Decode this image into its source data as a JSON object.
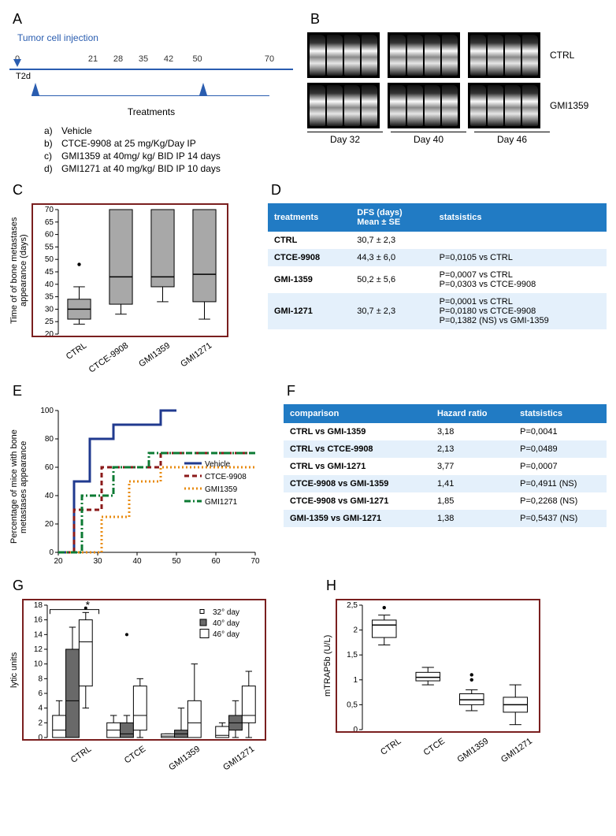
{
  "labels": {
    "A": "A",
    "B": "B",
    "C": "C",
    "D": "D",
    "E": "E",
    "F": "F",
    "G": "G",
    "H": "H"
  },
  "A": {
    "title": "Tumor cell injection",
    "timeline_ticks": [
      0,
      21,
      28,
      35,
      42,
      50,
      70
    ],
    "t2d": "T2d",
    "treatments_label": "Treatments",
    "treatments": [
      {
        "k": "a)",
        "t": "Vehicle"
      },
      {
        "k": "b)",
        "t": "CTCE-9908 at 25 mg/Kg/Day IP"
      },
      {
        "k": "c)",
        "t": "GMI1359  at 40mg/ kg/ BID IP 14 days"
      },
      {
        "k": "d)",
        "t": "GMI1271 at 40 mg/kg/ BID IP 10 days"
      }
    ],
    "color_accent": "#2a5db0"
  },
  "B": {
    "row_labels": [
      "CTRL",
      "GMI1359"
    ],
    "day_labels": [
      "Day 32",
      "Day 40",
      "Day 46"
    ],
    "imgs_per_group": 4
  },
  "C": {
    "type": "boxplot",
    "ylabel": "Time of  of bone metastases appearance (days)",
    "categories": [
      "CTRL",
      "CTCE-9908",
      "GMI1359",
      "GMI1271"
    ],
    "ylim": [
      20,
      70
    ],
    "ytick_step": 5,
    "boxes": [
      {
        "min": 24,
        "q1": 26,
        "med": 30,
        "q3": 34,
        "max": 39,
        "outliers": [
          48
        ]
      },
      {
        "min": 28,
        "q1": 32,
        "med": 43,
        "q3": 70,
        "max": 70,
        "outliers": []
      },
      {
        "min": 33,
        "q1": 39,
        "med": 43,
        "q3": 70,
        "max": 70,
        "outliers": []
      },
      {
        "min": 26,
        "q1": 33,
        "med": 44,
        "q3": 70,
        "max": 70,
        "outliers": []
      }
    ],
    "box_fill": "#a8a8a8",
    "frame_color": "#7a1f1f"
  },
  "D": {
    "columns": [
      "treatments",
      "DFS (days)\nMean ± SE",
      "statsistics"
    ],
    "rows": [
      [
        "CTRL",
        "30,7 ± 2,3",
        ""
      ],
      [
        "CTCE-9908",
        "44,3 ± 6,0",
        "P=0,0105 vs CTRL"
      ],
      [
        "GMI-1359",
        "50,2 ± 5,6",
        "P=0,0007 vs CTRL\nP=0,0303 vs CTCE-9908"
      ],
      [
        "GMI-1271",
        "30,7 ± 2,3",
        "P=0,0001 vs CTRL\nP=0,0180 vs CTCE-9908\nP=0,1382 (NS) vs GMI-1359"
      ]
    ]
  },
  "E": {
    "type": "step",
    "ylabel": "Percentage of mice with bone metastases appearance",
    "xlabel": "",
    "xlim": [
      20,
      70
    ],
    "xtick_step": 10,
    "ylim": [
      0,
      100
    ],
    "ytick_step": 20,
    "series": [
      {
        "name": "Vehicle",
        "color": "#203a8f",
        "dash": "",
        "width": 3,
        "points": [
          [
            20,
            0
          ],
          [
            24,
            0
          ],
          [
            24,
            50
          ],
          [
            28,
            50
          ],
          [
            28,
            80
          ],
          [
            34,
            80
          ],
          [
            34,
            90
          ],
          [
            46,
            90
          ],
          [
            46,
            100
          ],
          [
            50,
            100
          ]
        ]
      },
      {
        "name": "CTCE-9908",
        "color": "#8b1a1a",
        "dash": "6,4",
        "width": 3,
        "points": [
          [
            20,
            0
          ],
          [
            24,
            0
          ],
          [
            24,
            30
          ],
          [
            31,
            30
          ],
          [
            31,
            60
          ],
          [
            46,
            60
          ],
          [
            46,
            70
          ],
          [
            55,
            70
          ],
          [
            55,
            70
          ],
          [
            70,
            70
          ]
        ]
      },
      {
        "name": "GMI1359",
        "color": "#e88b10",
        "dash": "2,3",
        "width": 3,
        "points": [
          [
            20,
            0
          ],
          [
            31,
            0
          ],
          [
            31,
            25
          ],
          [
            38,
            25
          ],
          [
            38,
            50
          ],
          [
            46,
            50
          ],
          [
            46,
            60
          ],
          [
            70,
            60
          ]
        ]
      },
      {
        "name": "GMI1271",
        "color": "#0c7a33",
        "dash": "8,3,2,3",
        "width": 3,
        "points": [
          [
            20,
            0
          ],
          [
            26,
            0
          ],
          [
            26,
            40
          ],
          [
            34,
            40
          ],
          [
            34,
            60
          ],
          [
            43,
            60
          ],
          [
            43,
            70
          ],
          [
            70,
            70
          ]
        ]
      }
    ],
    "legend_pos": "right-inside"
  },
  "F": {
    "columns": [
      "comparison",
      "Hazard ratio",
      "statsistics"
    ],
    "rows": [
      [
        "CTRL vs  GMI-1359",
        "3,18",
        "P=0,0041"
      ],
      [
        "CTRL vs CTCE-9908",
        "2,13",
        "P=0,0489"
      ],
      [
        "CTRL vs GMI-1271",
        "3,77",
        "P=0,0007"
      ],
      [
        "CTCE-9908 vs GMI-1359",
        "1,41",
        "P=0,4911 (NS)"
      ],
      [
        "CTCE-9908 vs GMI-1271",
        "1,85",
        "P=0,2268 (NS)"
      ],
      [
        "GMI-1359 vs GMI-1271",
        "1,38",
        "P=0,5437 (NS)"
      ]
    ]
  },
  "G": {
    "type": "grouped-boxplot",
    "ylabel": "lytic units",
    "categories": [
      "CTRL",
      "CTCE",
      "GMI1359",
      "GMI1271"
    ],
    "day_labels": [
      "32° day",
      "40° day",
      "46° day"
    ],
    "day_legend_markers": [
      "small",
      "med",
      "large"
    ],
    "ylim": [
      0,
      18
    ],
    "ytick_step": 2,
    "box_fills": [
      "#ffffff",
      "#696969",
      "#ffffff"
    ],
    "data": [
      [
        {
          "min": 0,
          "q1": 0,
          "med": 1,
          "q3": 3,
          "max": 5,
          "outliers": []
        },
        {
          "min": 0,
          "q1": 0,
          "med": 5,
          "q3": 12,
          "max": 15,
          "outliers": []
        },
        {
          "min": 4,
          "q1": 7,
          "med": 13,
          "q3": 16,
          "max": 17,
          "outliers": [
            17.6
          ]
        }
      ],
      [
        {
          "min": 0,
          "q1": 0,
          "med": 1,
          "q3": 2,
          "max": 3,
          "outliers": []
        },
        {
          "min": 0,
          "q1": 0,
          "med": 0.5,
          "q3": 2,
          "max": 3,
          "outliers": [
            14
          ]
        },
        {
          "min": 0,
          "q1": 1,
          "med": 3,
          "q3": 7,
          "max": 8,
          "outliers": []
        }
      ],
      [
        {
          "min": 0,
          "q1": 0,
          "med": 0.2,
          "q3": 0.5,
          "max": 0.5,
          "outliers": []
        },
        {
          "min": 0,
          "q1": 0,
          "med": 0.5,
          "q3": 1,
          "max": 4,
          "outliers": []
        },
        {
          "min": 0,
          "q1": 0,
          "med": 2,
          "q3": 5,
          "max": 10,
          "outliers": []
        }
      ],
      [
        {
          "min": 0,
          "q1": 0,
          "med": 0.3,
          "q3": 1.5,
          "max": 2,
          "outliers": []
        },
        {
          "min": 0,
          "q1": 1,
          "med": 2,
          "q3": 3,
          "max": 5,
          "outliers": []
        },
        {
          "min": 0,
          "q1": 2,
          "med": 3,
          "q3": 7,
          "max": 9,
          "outliers": []
        }
      ]
    ],
    "frame_color": "#7a1f1f",
    "sig_marker": "*"
  },
  "H": {
    "type": "boxplot",
    "ylabel": "mTRAP5b (U/L)",
    "categories": [
      "CTRL",
      "CTCE",
      "GMI1359",
      "GMI1271"
    ],
    "ylim": [
      0,
      2.5
    ],
    "ytick_step": 0.5,
    "decimal_sep": ",",
    "boxes": [
      {
        "min": 1.7,
        "q1": 1.85,
        "med": 2.1,
        "q3": 2.2,
        "max": 2.3,
        "outliers": [
          2.45
        ]
      },
      {
        "min": 0.9,
        "q1": 0.98,
        "med": 1.05,
        "q3": 1.15,
        "max": 1.25,
        "outliers": []
      },
      {
        "min": 0.38,
        "q1": 0.5,
        "med": 0.6,
        "q3": 0.72,
        "max": 0.8,
        "outliers": [
          1.0,
          1.1
        ]
      },
      {
        "min": 0.1,
        "q1": 0.35,
        "med": 0.5,
        "q3": 0.65,
        "max": 0.9,
        "outliers": []
      }
    ],
    "box_fill": "#ffffff",
    "frame_color": "#7a1f1f"
  }
}
